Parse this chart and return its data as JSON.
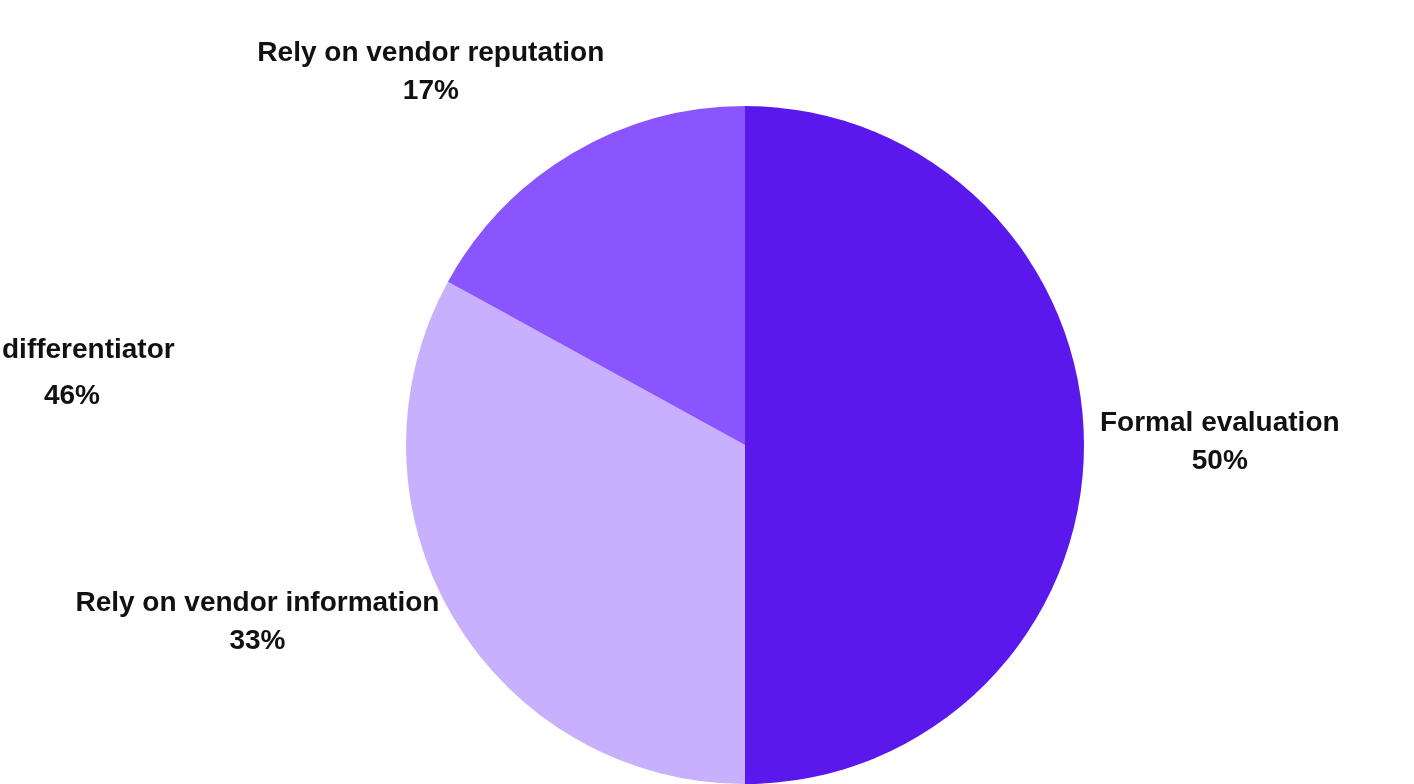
{
  "chart_data": {
    "type": "pie",
    "categories": [
      "Formal evaluation",
      "Rely on vendor information",
      "Rely on vendor reputation"
    ],
    "values": [
      50,
      33,
      17
    ],
    "colors": [
      "#5b18ec",
      "#c9b0ff",
      "#8a54ff"
    ],
    "value_labels": [
      "50%",
      "33%",
      "17%"
    ],
    "annotations": [
      "differentiator",
      "46%"
    ]
  }
}
